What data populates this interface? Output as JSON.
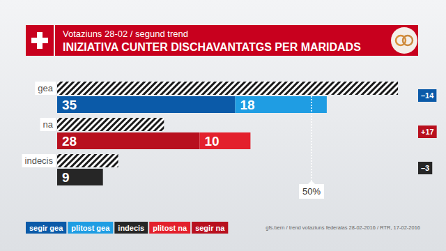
{
  "chart_data": {
    "type": "bar",
    "orientation": "horizontal",
    "stacked": true,
    "data_labels": true,
    "tick_labels": "y",
    "grid": false,
    "legend": "bottom",
    "title": "INIZIATIVA CUNTER DISCHAVANTATGS PER MARIDADS",
    "subtitle": "Votaziuns 28-02 / segund trend",
    "categories": [
      "gea",
      "na",
      "indecis"
    ],
    "series": [
      {
        "name": "segir gea",
        "color": "#0b5aa8",
        "values": [
          35,
          null,
          null
        ]
      },
      {
        "name": "plitost gea",
        "color": "#1f9de3",
        "values": [
          18,
          null,
          null
        ]
      },
      {
        "name": "indecis",
        "color": "#262626",
        "values": [
          null,
          null,
          9
        ]
      },
      {
        "name": "plitost na",
        "color": "#e3202c",
        "values": [
          null,
          10,
          null
        ]
      },
      {
        "name": "segir na",
        "color": "#b8101e",
        "values": [
          null,
          28,
          null
        ]
      }
    ],
    "previous_values": [
      67,
      21,
      12
    ],
    "changes": [
      {
        "value": -14,
        "label": "–14"
      },
      {
        "value": 17,
        "label": "+17"
      },
      {
        "value": -3,
        "label": "–3"
      }
    ],
    "reference": {
      "value": 50,
      "label": "50%"
    },
    "xlim": [
      0,
      70
    ],
    "source": "gfs.bern / trend votaziuns federalas 28-02-2016 / RTR, 17-02-2016"
  }
}
